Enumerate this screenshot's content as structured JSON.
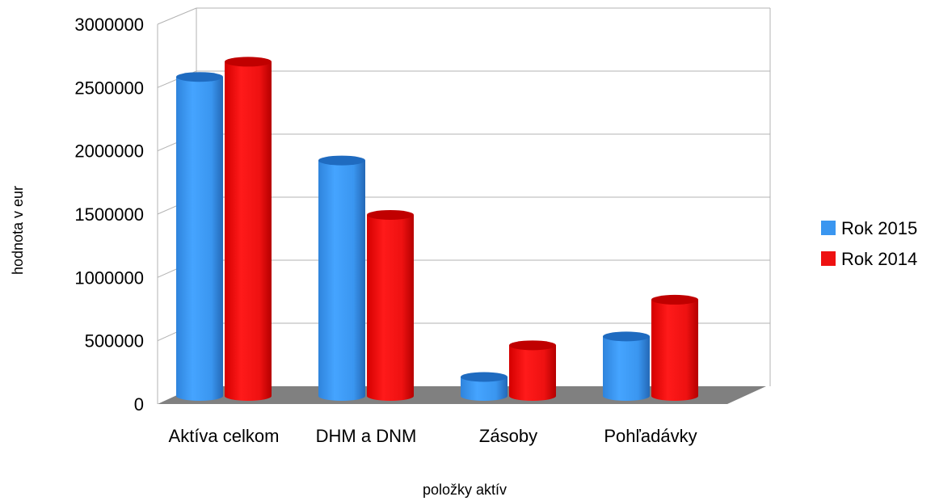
{
  "chart_data": {
    "type": "bar",
    "title": "",
    "xlabel": "položky aktív",
    "ylabel": "hodnota v eur",
    "categories": [
      "Aktíva celkom",
      "DHM a DNM",
      "Zásoby",
      "Pohľadávky"
    ],
    "series": [
      {
        "name": "Rok 2015",
        "values": [
          2520000,
          1860000,
          150000,
          470000
        ],
        "color": "#3a96f0"
      },
      {
        "name": "Rok 2014",
        "values": [
          2640000,
          1430000,
          400000,
          760000
        ],
        "color": "#ee1111"
      }
    ],
    "ylim": [
      0,
      3000000
    ],
    "yticks": [
      "0",
      "500000",
      "1000000",
      "1500000",
      "2000000",
      "2500000",
      "3000000"
    ],
    "grid": true,
    "legend_position": "right",
    "style": "3d-cylinder"
  }
}
